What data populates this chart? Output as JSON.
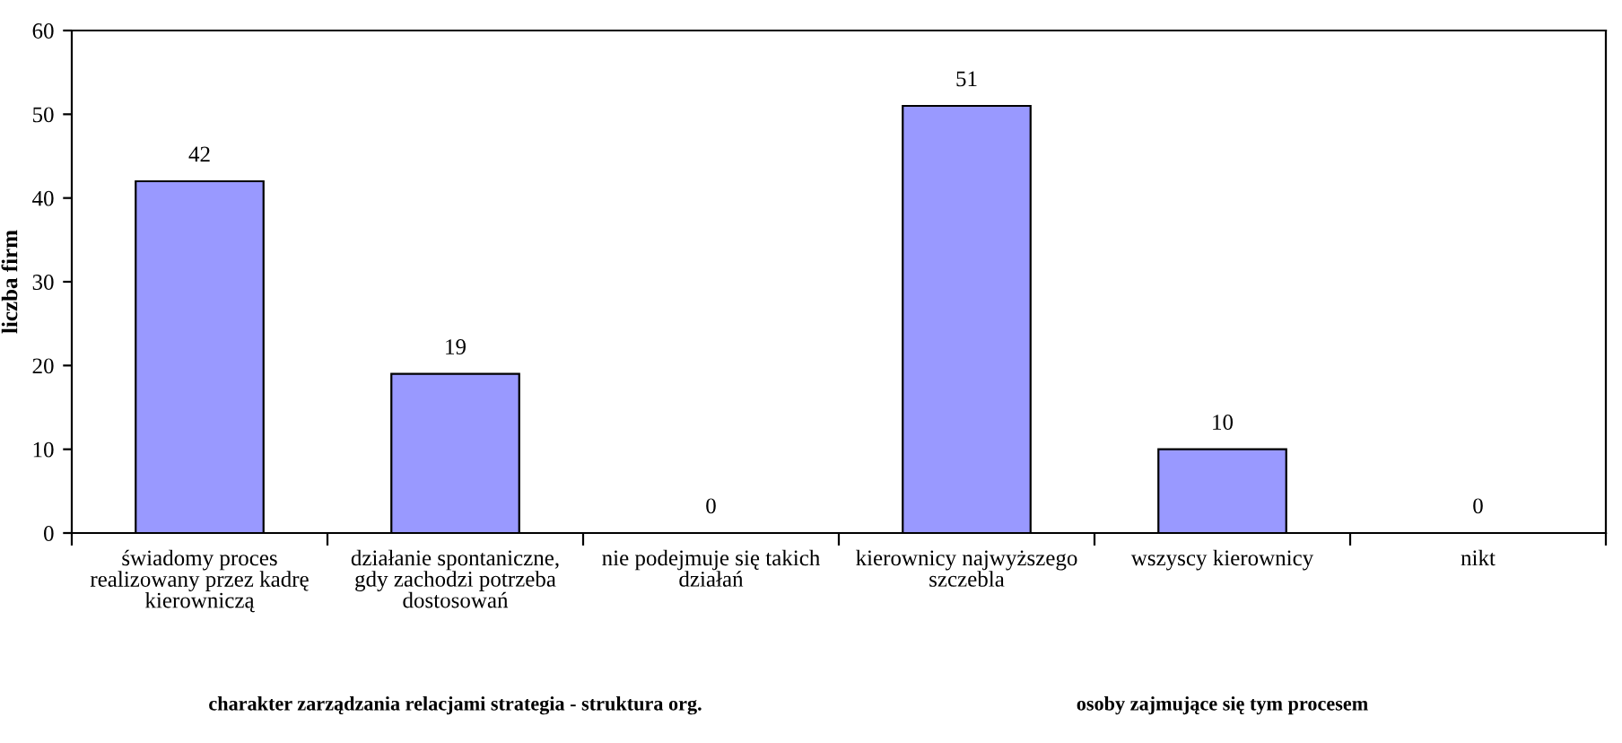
{
  "chart_data": {
    "type": "bar",
    "ylabel": "liczba firm",
    "categories": [
      "świadomy proces realizowany przez kadrę kierowniczą",
      "działanie spontaniczne, gdy zachodzi potrzeba dostosowań",
      "nie podejmuje się takich działań",
      "kierownicy najwyższego szczebla",
      "wszyscy kierownicy",
      "nikt"
    ],
    "values": [
      42,
      19,
      0,
      51,
      10,
      0
    ],
    "color": "#9999ff",
    "data_labels": true,
    "ylim": [
      0,
      60
    ],
    "yticks": [
      0,
      10,
      20,
      30,
      40,
      50,
      60
    ],
    "grid": false,
    "annotations": [
      "charakter zarządzania relacjami strategia - struktura org.",
      "osoby zajmujące się tym procesem"
    ]
  }
}
